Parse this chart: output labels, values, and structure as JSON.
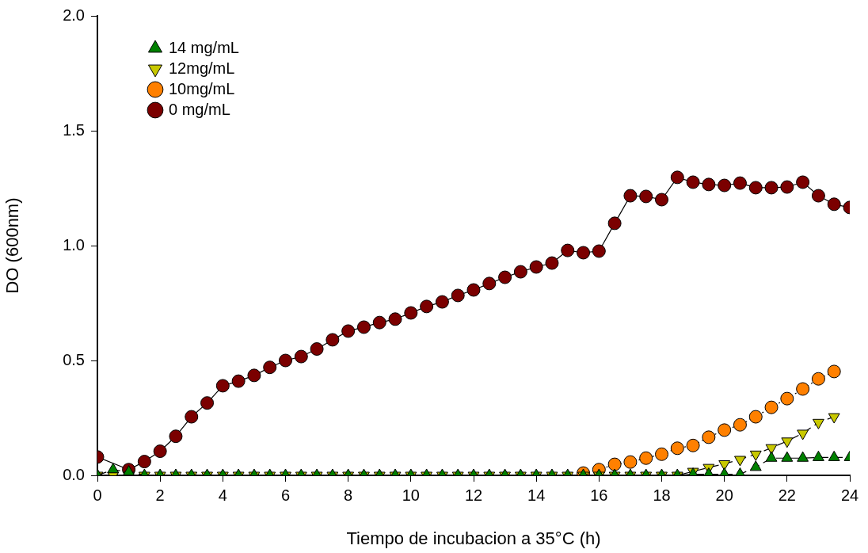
{
  "chart_data": {
    "type": "line",
    "xlabel": "Tiempo de incubacion a 35°C (h)",
    "ylabel": "DO (600nm)",
    "x": [
      0,
      0.5,
      1,
      1.5,
      2,
      2.5,
      3,
      3.5,
      4,
      4.5,
      5,
      5.5,
      6,
      6.5,
      7,
      7.5,
      8,
      8.5,
      9,
      9.5,
      10,
      10.5,
      11,
      11.5,
      12,
      12.5,
      13,
      13.5,
      14,
      14.5,
      15,
      15.5,
      16,
      16.5,
      17,
      17.5,
      18,
      18.5,
      19,
      19.5,
      20,
      20.5,
      21,
      21.5,
      22,
      22.5,
      23,
      23.5,
      24
    ],
    "xlim": [
      0,
      24
    ],
    "xticks": [
      0,
      2,
      4,
      6,
      8,
      10,
      12,
      14,
      16,
      18,
      20,
      22,
      24
    ],
    "ylim": [
      0,
      2
    ],
    "yticks": [
      {
        "value": 0,
        "label": "0.0"
      },
      {
        "value": 0.5,
        "label": "0.5"
      },
      {
        "value": 1,
        "label": "1.0"
      },
      {
        "value": 1.5,
        "label": "1.5"
      },
      {
        "value": 2,
        "label": "2.0"
      }
    ],
    "grid": false,
    "legend": "top left",
    "series": [
      {
        "name": "0 mg/mL",
        "color": "#7b0000",
        "marker": "circle",
        "line_style": "solid",
        "values": [
          0.08,
          null,
          0.025,
          0.06,
          0.105,
          0.17,
          0.255,
          0.315,
          0.39,
          0.41,
          0.435,
          0.47,
          0.5,
          0.517,
          0.55,
          0.59,
          0.628,
          0.645,
          0.665,
          0.68,
          0.707,
          0.735,
          0.755,
          0.783,
          0.807,
          0.835,
          0.862,
          0.886,
          0.907,
          0.924,
          0.979,
          0.969,
          0.976,
          1.097,
          1.217,
          1.214,
          1.2,
          1.297,
          1.276,
          1.266,
          1.262,
          1.272,
          1.252,
          1.252,
          1.255,
          1.276,
          1.217,
          1.18,
          1.166
        ]
      },
      {
        "name": "10mg/mL",
        "color": "#ff8000",
        "marker": "circle",
        "line_style": "dotted",
        "values": [
          null,
          null,
          null,
          null,
          null,
          null,
          null,
          null,
          null,
          null,
          null,
          null,
          null,
          null,
          null,
          null,
          null,
          null,
          null,
          null,
          null,
          null,
          null,
          null,
          null,
          null,
          null,
          null,
          null,
          null,
          null,
          0.01,
          0.025,
          0.048,
          0.058,
          0.075,
          0.092,
          0.118,
          0.13,
          0.166,
          0.197,
          0.22,
          0.255,
          0.296,
          0.334,
          0.376,
          0.42,
          0.452,
          null
        ]
      },
      {
        "name": "12mg/mL",
        "color": "#c8c800",
        "marker": "triangle-down",
        "line_style": "dashed",
        "values": [
          0,
          0,
          0,
          0,
          0,
          0,
          0,
          0,
          0,
          0,
          0,
          0,
          0,
          0,
          0,
          0,
          0,
          0,
          0,
          0,
          0,
          0,
          0,
          0,
          0,
          0,
          0,
          0,
          0,
          0,
          0,
          0,
          0,
          0,
          0,
          0,
          0,
          0,
          0.017,
          0.034,
          0.05,
          0.069,
          0.092,
          0.12,
          0.149,
          0.183,
          0.23,
          0.255,
          null
        ]
      },
      {
        "name": "14 mg/mL",
        "color": "#008000",
        "marker": "triangle",
        "line_style": "dashed",
        "values": [
          0,
          0.025,
          0.015,
          0,
          0,
          0,
          0,
          0,
          0,
          0,
          0,
          0,
          0,
          0,
          0,
          0,
          0,
          0,
          0,
          0,
          0,
          0,
          0,
          0,
          0,
          0,
          0,
          0,
          0,
          0,
          0,
          0,
          0,
          0,
          0,
          0,
          0,
          0,
          0.005,
          0.005,
          0.005,
          0.005,
          0.035,
          0.075,
          0.075,
          0.075,
          0.078,
          0.078,
          0.078
        ]
      }
    ]
  }
}
